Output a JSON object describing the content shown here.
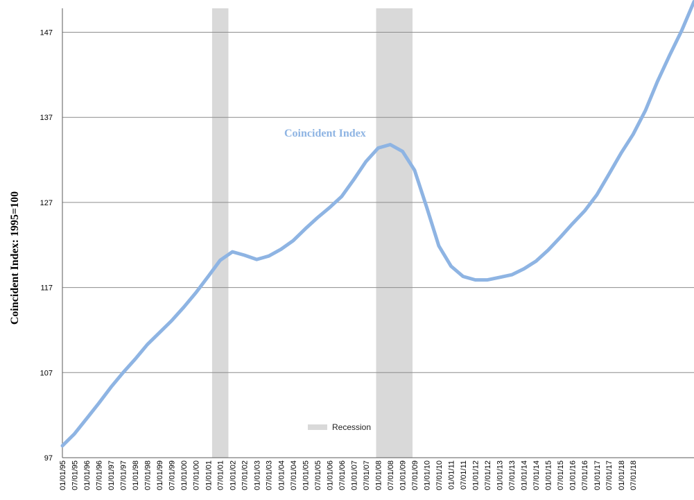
{
  "chart_data": {
    "type": "line",
    "title": "",
    "ylabel": "Coincident Index: 1995=100",
    "series": [
      {
        "name": "Coincident Index",
        "color": "#8eb4e3",
        "points": [
          [
            "1995-01-01",
            98.4
          ],
          [
            "1995-07-01",
            99.8
          ],
          [
            "1996-01-01",
            101.6
          ],
          [
            "1996-07-01",
            103.4
          ],
          [
            "1997-01-01",
            105.3
          ],
          [
            "1997-07-01",
            107.0
          ],
          [
            "1998-01-01",
            108.6
          ],
          [
            "1998-07-01",
            110.3
          ],
          [
            "1999-01-01",
            111.7
          ],
          [
            "1999-07-01",
            113.1
          ],
          [
            "2000-01-01",
            114.7
          ],
          [
            "2000-07-01",
            116.4
          ],
          [
            "2001-01-01",
            118.3
          ],
          [
            "2001-07-01",
            120.2
          ],
          [
            "2002-01-01",
            121.2
          ],
          [
            "2002-07-01",
            120.8
          ],
          [
            "2003-01-01",
            120.3
          ],
          [
            "2003-07-01",
            120.7
          ],
          [
            "2004-01-01",
            121.5
          ],
          [
            "2004-07-01",
            122.5
          ],
          [
            "2005-01-01",
            123.9
          ],
          [
            "2005-07-01",
            125.2
          ],
          [
            "2006-01-01",
            126.4
          ],
          [
            "2006-07-01",
            127.7
          ],
          [
            "2007-01-01",
            129.7
          ],
          [
            "2007-07-01",
            131.8
          ],
          [
            "2008-01-01",
            133.4
          ],
          [
            "2008-07-01",
            133.8
          ],
          [
            "2009-01-01",
            133.0
          ],
          [
            "2009-07-01",
            130.8
          ],
          [
            "2010-01-01",
            126.4
          ],
          [
            "2010-07-01",
            121.9
          ],
          [
            "2011-01-01",
            119.5
          ],
          [
            "2011-07-01",
            118.3
          ],
          [
            "2012-01-01",
            117.9
          ],
          [
            "2012-07-01",
            117.9
          ],
          [
            "2013-01-01",
            118.2
          ],
          [
            "2013-07-01",
            118.5
          ],
          [
            "2014-01-01",
            119.2
          ],
          [
            "2014-07-01",
            120.1
          ],
          [
            "2015-01-01",
            121.4
          ],
          [
            "2015-07-01",
            122.9
          ],
          [
            "2016-01-01",
            124.5
          ],
          [
            "2016-07-01",
            126.0
          ],
          [
            "2017-01-01",
            127.9
          ],
          [
            "2017-07-01",
            130.3
          ],
          [
            "2018-01-01",
            132.8
          ],
          [
            "2018-07-01",
            135.0
          ],
          [
            "2019-01-01",
            137.8
          ],
          [
            "2019-07-01",
            141.2
          ],
          [
            "2020-01-01",
            144.3
          ],
          [
            "2020-07-01",
            147.2
          ],
          [
            "2021-01-01",
            150.6
          ]
        ]
      }
    ],
    "recessions": [
      {
        "start": "2001-03-01",
        "end": "2001-11-01"
      },
      {
        "start": "2007-12-01",
        "end": "2009-06-01"
      }
    ],
    "recession_color": "#d9d9d9",
    "legend": {
      "label": "Recession",
      "placement": "bottom-center"
    },
    "series_label": "Coincident Index",
    "y_ticks": [
      "97",
      "107",
      "117",
      "127",
      "137",
      "147"
    ],
    "ylim": [
      97,
      150
    ],
    "x_start": "1995-01-01",
    "x_end": "2021-01-01",
    "x_ticks": [
      "01/01/95",
      "07/01/95",
      "01/01/96",
      "07/01/96",
      "01/01/97",
      "07/01/97",
      "01/01/98",
      "07/01/98",
      "01/01/99",
      "07/01/99",
      "01/01/00",
      "07/01/00",
      "01/01/01",
      "07/01/01",
      "01/01/02",
      "07/01/02",
      "01/01/03",
      "07/01/03",
      "01/01/04",
      "07/01/04",
      "01/01/05",
      "07/01/05",
      "01/01/06",
      "07/01/06",
      "01/01/07",
      "07/01/07",
      "01/01/08",
      "07/01/08",
      "01/01/09",
      "07/01/09",
      "01/01/10",
      "07/01/10",
      "01/01/11",
      "07/01/11",
      "01/01/12",
      "07/01/12",
      "01/01/13",
      "07/01/13",
      "01/01/14",
      "07/01/14",
      "01/01/15",
      "07/01/15",
      "01/01/16",
      "07/01/16",
      "01/01/17",
      "07/01/17",
      "01/01/18",
      "07/01/18"
    ],
    "grid": "horizontal"
  }
}
